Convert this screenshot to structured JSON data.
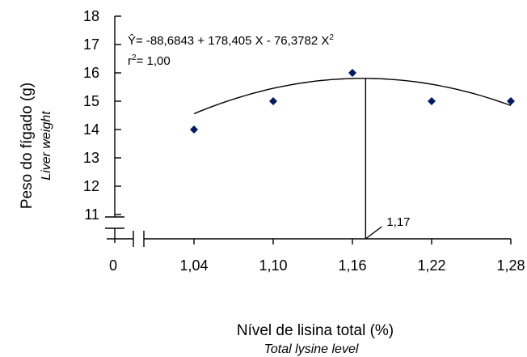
{
  "chart_data": {
    "type": "scatter",
    "x_values": [
      1.04,
      1.1,
      1.16,
      1.22,
      1.28
    ],
    "y_values": [
      14,
      15,
      16,
      15,
      15
    ],
    "x_tick_labels": [
      "0",
      "1,04",
      "1,10",
      "1,16",
      "1,22",
      "1,28"
    ],
    "y_tick_labels": [
      "11",
      "12",
      "13",
      "14",
      "15",
      "16",
      "17",
      "18"
    ],
    "ylim": [
      11,
      18
    ],
    "xlim": [
      1.04,
      1.28
    ],
    "xlabel": "Nível de lisina total (%)",
    "xlabel_sub": "Total lysine level",
    "ylabel": "Peso do fígado (g)",
    "ylabel_sub": "Liver weight",
    "equation": "Ŷ= -88,6843 + 178,405 X - 76,3782 X²",
    "equation_main": "Ŷ= -88,6843 + 178,405 X - 76,3782 X",
    "equation_sup": "2",
    "r2_prefix": "r",
    "r2_sup": "2",
    "r2_value": "= 1,00",
    "fit_coefficients": {
      "a": -88.6843,
      "b": 178.405,
      "c": -76.3782
    },
    "optimum_x": 1.17,
    "optimum_label": "1,17",
    "fit_y_offset": 0.31,
    "marker_color": "#001a66",
    "axis_break": true
  }
}
